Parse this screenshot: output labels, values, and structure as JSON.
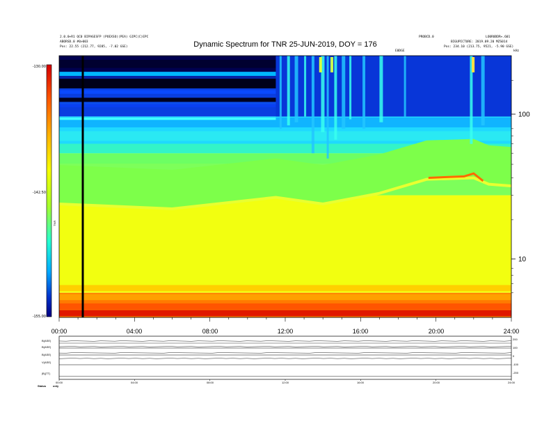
{
  "header": {
    "left_line1": "2.0.0+R1 QC0 BIPAGESFP (POEXSO)(PEA) GIPC(C)EPC",
    "left_line2": "ABORSD.0 #0>003",
    "pos_left": "Pos:    22.55 (212.77, 9285, -7.02 GSE)",
    "right_line1": "PROBCD.0",
    "right_line2": "LO0R0DDR+.601",
    "right_line3": "BIGUPICTURE:  2019.09.20 MZS014",
    "pos_right": "Pos:    234.10 (213.75, 9521, -5.90 GSE)",
    "marker": "E0DGE",
    "corner": "kHz"
  },
  "chart_data": {
    "type": "heatmap",
    "title": "Dynamic Spectrum for TNR 25-JUN-2019, DOY = 176",
    "x_ticks": [
      "00:00",
      "04:00",
      "08:00",
      "12:00",
      "16:00",
      "20:00",
      "24:00"
    ],
    "x_range_hours": [
      0,
      24
    ],
    "y_ticks": [
      "100",
      "10"
    ],
    "y_scale": "log",
    "y_range_khz": [
      4,
      300
    ],
    "colorbar": {
      "ticks": [
        "-130.00",
        "-142.50",
        "-155.00"
      ],
      "range": [
        -155,
        -130
      ],
      "label": "TNR",
      "colors": [
        "#d40000",
        "#ff5a00",
        "#ffb300",
        "#f6ff00",
        "#a6ff2a",
        "#25ffd0",
        "#00aaff",
        "#0033cc",
        "#000080"
      ]
    },
    "data_gap_hour": 1.2,
    "bands": [
      {
        "name": "dark top",
        "khz": [
          220,
          300
        ],
        "level": -130
      },
      {
        "name": "blue",
        "khz": [
          110,
          220
        ],
        "level": -133
      },
      {
        "name": "cyan",
        "khz": [
          60,
          110
        ],
        "level": -137
      },
      {
        "name": "green",
        "khz": [
          30,
          60
        ],
        "level": -140
      },
      {
        "name": "yellow",
        "khz": [
          6,
          30
        ],
        "level": -146
      },
      {
        "name": "red floor",
        "khz": [
          4,
          6
        ],
        "level": -153
      }
    ],
    "band_edge_khz": [
      {
        "hour": 0,
        "khz": 26
      },
      {
        "hour": 6,
        "khz": 24
      },
      {
        "hour": 11.5,
        "khz": 29
      },
      {
        "hour": 14,
        "khz": 26
      },
      {
        "hour": 17,
        "khz": 31
      },
      {
        "hour": 19.5,
        "khz": 39
      },
      {
        "hour": 22,
        "khz": 40
      },
      {
        "hour": 22.8,
        "khz": 36
      },
      {
        "hour": 24,
        "khz": 35
      }
    ]
  },
  "mini_panels": {
    "y_labels": [
      "B(ASE)",
      "B(ASE)",
      "B(ASE)",
      "V(ASE)",
      "|B|(TT)"
    ],
    "x_ticks": [
      "00:00",
      "04:00",
      "08:00",
      "12:00",
      "16:00",
      "20:00",
      "24:00"
    ],
    "right_ticks": [
      "200",
      "100",
      "0",
      "-100",
      "-200"
    ],
    "footer_left": "Status",
    "footer_right": "only"
  }
}
